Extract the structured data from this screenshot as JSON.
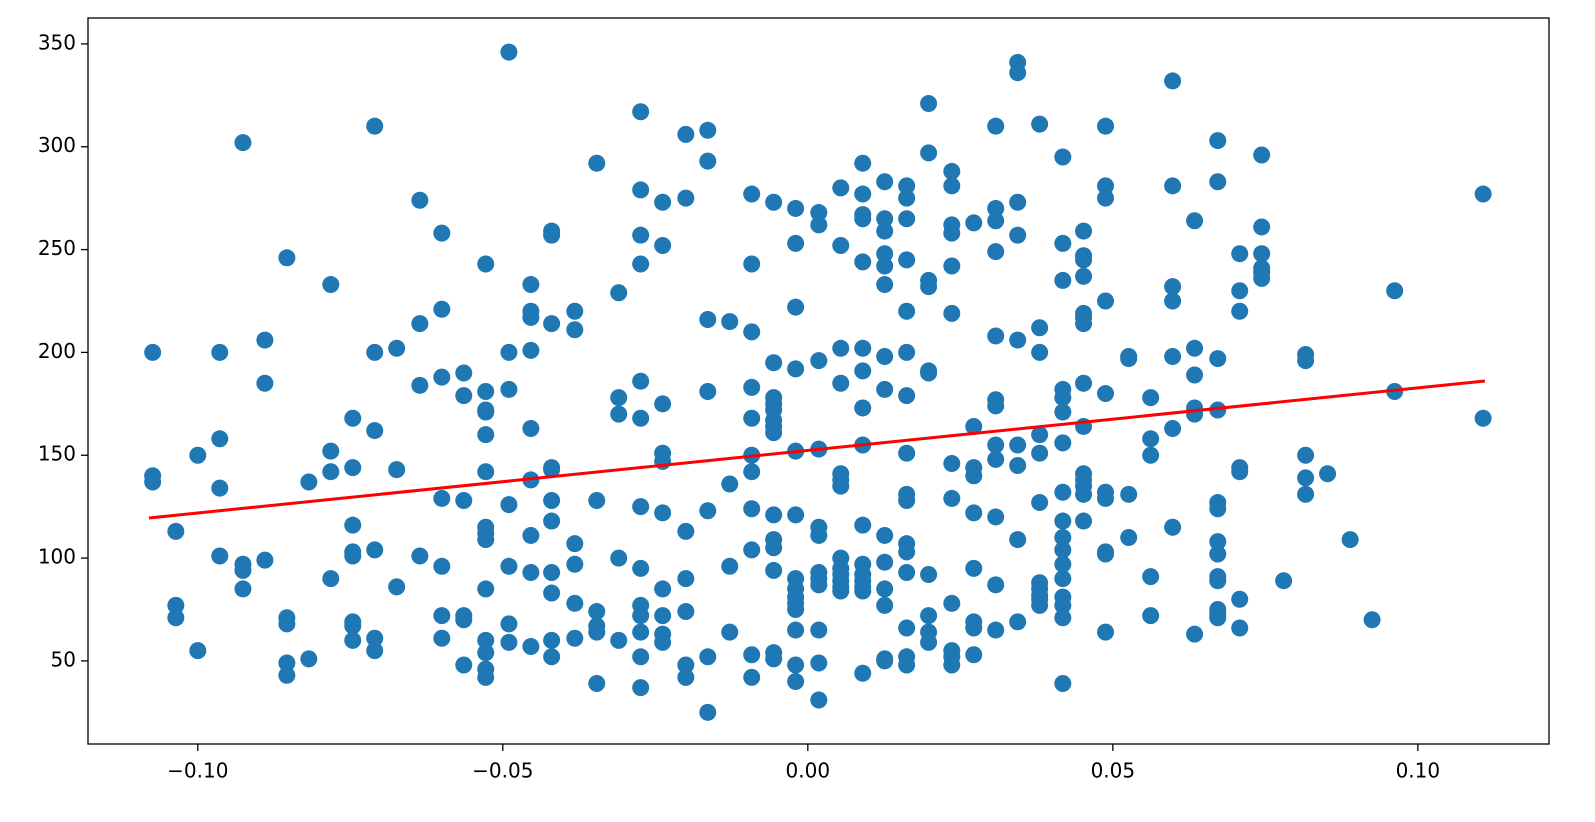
{
  "chart_data": {
    "type": "scatter",
    "color": "#1f77b4",
    "x": [
      -0.1074,
      -0.1074,
      -0.1074,
      -0.1036,
      -0.1036,
      -0.1036,
      -0.1,
      -0.1,
      -0.0964,
      -0.0964,
      -0.0964,
      -0.0964,
      -0.0926,
      -0.0926,
      -0.0926,
      -0.0926,
      -0.089,
      -0.089,
      -0.089,
      -0.0854,
      -0.0854,
      -0.0854,
      -0.0854,
      -0.0854,
      -0.0818,
      -0.0818,
      -0.0782,
      -0.0782,
      -0.0782,
      -0.0782,
      -0.0746,
      -0.0746,
      -0.0746,
      -0.0746,
      -0.0746,
      -0.0746,
      -0.0746,
      -0.0746,
      -0.071,
      -0.071,
      -0.071,
      -0.071,
      -0.071,
      -0.071,
      -0.0674,
      -0.0674,
      -0.0674,
      -0.0636,
      -0.0636,
      -0.0636,
      -0.0636,
      -0.06,
      -0.06,
      -0.06,
      -0.06,
      -0.06,
      -0.06,
      -0.06,
      -0.0564,
      -0.0564,
      -0.0564,
      -0.0564,
      -0.0564,
      -0.0564,
      -0.0528,
      -0.0528,
      -0.0528,
      -0.0528,
      -0.0528,
      -0.0528,
      -0.0528,
      -0.0528,
      -0.0528,
      -0.0528,
      -0.0528,
      -0.0528,
      -0.0528,
      -0.0528,
      -0.049,
      -0.049,
      -0.049,
      -0.049,
      -0.049,
      -0.049,
      -0.049,
      -0.0454,
      -0.0454,
      -0.0454,
      -0.0454,
      -0.0454,
      -0.0454,
      -0.0454,
      -0.0454,
      -0.0454,
      -0.042,
      -0.042,
      -0.042,
      -0.042,
      -0.042,
      -0.042,
      -0.042,
      -0.042,
      -0.042,
      -0.042,
      -0.042,
      -0.0382,
      -0.0382,
      -0.0382,
      -0.0382,
      -0.0382,
      -0.0382,
      -0.0346,
      -0.0346,
      -0.0346,
      -0.0346,
      -0.0346,
      -0.0346,
      -0.031,
      -0.031,
      -0.031,
      -0.031,
      -0.031,
      -0.0274,
      -0.0274,
      -0.0274,
      -0.0274,
      -0.0274,
      -0.0274,
      -0.0274,
      -0.0274,
      -0.0274,
      -0.0274,
      -0.0274,
      -0.0274,
      -0.0274,
      -0.0238,
      -0.0238,
      -0.0238,
      -0.0238,
      -0.0238,
      -0.0238,
      -0.0238,
      -0.0238,
      -0.0238,
      -0.0238,
      -0.02,
      -0.02,
      -0.02,
      -0.02,
      -0.02,
      -0.02,
      -0.02,
      -0.0164,
      -0.0164,
      -0.0164,
      -0.0164,
      -0.0164,
      -0.0164,
      -0.0164,
      -0.0128,
      -0.0128,
      -0.0128,
      -0.0128,
      -0.0092,
      -0.0092,
      -0.0092,
      -0.0092,
      -0.0092,
      -0.0092,
      -0.0092,
      -0.0092,
      -0.0092,
      -0.0092,
      -0.0092,
      -0.0056,
      -0.0056,
      -0.0056,
      -0.0056,
      -0.0056,
      -0.0056,
      -0.0056,
      -0.0056,
      -0.0056,
      -0.0056,
      -0.0056,
      -0.0056,
      -0.0056,
      -0.0056,
      -0.002,
      -0.002,
      -0.002,
      -0.002,
      -0.002,
      -0.002,
      -0.002,
      -0.002,
      -0.002,
      -0.002,
      -0.002,
      -0.002,
      -0.002,
      -0.002,
      0.0018,
      0.0018,
      0.0018,
      0.0018,
      0.0018,
      0.0018,
      0.0018,
      0.0018,
      0.0018,
      0.0018,
      0.0018,
      0.0018,
      0.0054,
      0.0054,
      0.0054,
      0.0054,
      0.0054,
      0.0054,
      0.0054,
      0.0054,
      0.0054,
      0.0054,
      0.0054,
      0.0054,
      0.0054,
      0.009,
      0.009,
      0.009,
      0.009,
      0.009,
      0.009,
      0.009,
      0.009,
      0.009,
      0.009,
      0.009,
      0.009,
      0.009,
      0.009,
      0.009,
      0.009,
      0.0126,
      0.0126,
      0.0126,
      0.0126,
      0.0126,
      0.0126,
      0.0126,
      0.0126,
      0.0126,
      0.0126,
      0.0126,
      0.0126,
      0.0126,
      0.0126,
      0.0162,
      0.0162,
      0.0162,
      0.0162,
      0.0162,
      0.0162,
      0.0162,
      0.0162,
      0.0162,
      0.0162,
      0.0162,
      0.0162,
      0.0162,
      0.0162,
      0.0162,
      0.0162,
      0.0198,
      0.0198,
      0.0198,
      0.0198,
      0.0198,
      0.0198,
      0.0198,
      0.0198,
      0.0198,
      0.0198,
      0.0236,
      0.0236,
      0.0236,
      0.0236,
      0.0236,
      0.0236,
      0.0236,
      0.0236,
      0.0236,
      0.0236,
      0.0236,
      0.0236,
      0.0272,
      0.0272,
      0.0272,
      0.0272,
      0.0272,
      0.0272,
      0.0272,
      0.0272,
      0.0272,
      0.0308,
      0.0308,
      0.0308,
      0.0308,
      0.0308,
      0.0308,
      0.0308,
      0.0308,
      0.0308,
      0.0308,
      0.0308,
      0.0308,
      0.0344,
      0.0344,
      0.0344,
      0.0344,
      0.0344,
      0.0344,
      0.0344,
      0.0344,
      0.0344,
      0.038,
      0.038,
      0.038,
      0.038,
      0.038,
      0.038,
      0.038,
      0.038,
      0.038,
      0.038,
      0.038,
      0.0418,
      0.0418,
      0.0418,
      0.0418,
      0.0418,
      0.0418,
      0.0418,
      0.0418,
      0.0418,
      0.0418,
      0.0418,
      0.0418,
      0.0418,
      0.0418,
      0.0418,
      0.0418,
      0.0418,
      0.0452,
      0.0452,
      0.0452,
      0.0452,
      0.0452,
      0.0452,
      0.0452,
      0.0452,
      0.0452,
      0.0452,
      0.0452,
      0.0452,
      0.0452,
      0.0452,
      0.0488,
      0.0488,
      0.0488,
      0.0488,
      0.0488,
      0.0488,
      0.0488,
      0.0488,
      0.0488,
      0.0488,
      0.0526,
      0.0526,
      0.0526,
      0.0526,
      0.0562,
      0.0562,
      0.0562,
      0.0562,
      0.0562,
      0.0598,
      0.0598,
      0.0598,
      0.0598,
      0.0598,
      0.0598,
      0.0598,
      0.0634,
      0.0634,
      0.0634,
      0.0634,
      0.0634,
      0.0634,
      0.0672,
      0.0672,
      0.0672,
      0.0672,
      0.0672,
      0.0672,
      0.0672,
      0.0672,
      0.0672,
      0.0672,
      0.0672,
      0.0672,
      0.0672,
      0.0708,
      0.0708,
      0.0708,
      0.0708,
      0.0708,
      0.0708,
      0.0708,
      0.0744,
      0.0744,
      0.0744,
      0.0744,
      0.0744,
      0.0744,
      0.078,
      0.0816,
      0.0816,
      0.0816,
      0.0816,
      0.0816,
      0.0852,
      0.0889,
      0.0925,
      0.0962,
      0.0962,
      0.1107,
      0.1107
    ],
    "values": [
      200,
      140,
      137,
      113,
      77,
      71,
      150,
      55,
      200,
      158,
      134,
      101,
      302,
      97,
      94,
      85,
      206,
      185,
      99,
      246,
      71,
      68,
      49,
      43,
      137,
      51,
      233,
      152,
      142,
      90,
      168,
      144,
      116,
      103,
      101,
      69,
      67,
      60,
      310,
      200,
      162,
      104,
      61,
      55,
      202,
      143,
      86,
      274,
      214,
      184,
      101,
      258,
      221,
      188,
      129,
      96,
      72,
      61,
      190,
      179,
      128,
      72,
      70,
      48,
      243,
      181,
      172,
      171,
      160,
      142,
      115,
      112,
      109,
      85,
      60,
      54,
      46,
      42,
      346,
      200,
      182,
      126,
      96,
      68,
      59,
      233,
      220,
      217,
      201,
      163,
      138,
      111,
      93,
      57,
      259,
      257,
      214,
      144,
      143,
      128,
      118,
      93,
      83,
      60,
      52,
      220,
      211,
      107,
      97,
      78,
      61,
      292,
      128,
      74,
      67,
      64,
      39,
      229,
      178,
      170,
      100,
      60,
      317,
      279,
      257,
      243,
      186,
      168,
      125,
      95,
      77,
      72,
      64,
      52,
      37,
      273,
      252,
      175,
      151,
      147,
      122,
      85,
      72,
      63,
      59,
      306,
      275,
      113,
      90,
      74,
      48,
      42,
      308,
      293,
      216,
      181,
      123,
      52,
      25,
      215,
      136,
      96,
      64,
      277,
      243,
      210,
      183,
      168,
      150,
      142,
      124,
      104,
      53,
      42,
      273,
      195,
      178,
      175,
      172,
      167,
      164,
      161,
      121,
      109,
      105,
      94,
      54,
      51,
      270,
      253,
      222,
      192,
      152,
      121,
      90,
      85,
      81,
      78,
      75,
      65,
      48,
      40,
      268,
      262,
      196,
      153,
      115,
      111,
      93,
      90,
      87,
      65,
      49,
      31,
      280,
      252,
      202,
      185,
      141,
      138,
      135,
      100,
      95,
      92,
      89,
      86,
      84,
      292,
      277,
      267,
      265,
      244,
      202,
      191,
      173,
      155,
      116,
      97,
      92,
      89,
      86,
      84,
      44,
      283,
      265,
      259,
      248,
      242,
      233,
      198,
      182,
      111,
      98,
      85,
      77,
      51,
      50,
      281,
      275,
      265,
      245,
      220,
      200,
      179,
      151,
      131,
      128,
      107,
      103,
      93,
      66,
      52,
      48,
      321,
      297,
      235,
      232,
      191,
      190,
      92,
      72,
      64,
      59,
      288,
      281,
      262,
      258,
      242,
      219,
      146,
      129,
      78,
      55,
      52,
      48,
      263,
      164,
      144,
      140,
      122,
      95,
      69,
      66,
      53,
      310,
      270,
      264,
      249,
      208,
      177,
      174,
      155,
      148,
      120,
      87,
      65,
      341,
      336,
      273,
      257,
      206,
      155,
      145,
      109,
      69,
      311,
      212,
      200,
      160,
      151,
      127,
      88,
      85,
      82,
      80,
      77,
      295,
      253,
      235,
      182,
      178,
      171,
      156,
      132,
      118,
      110,
      104,
      97,
      90,
      81,
      77,
      71,
      39,
      259,
      247,
      245,
      237,
      219,
      217,
      214,
      185,
      164,
      141,
      138,
      135,
      131,
      118,
      310,
      281,
      275,
      225,
      180,
      132,
      129,
      103,
      102,
      64,
      198,
      197,
      131,
      110,
      178,
      158,
      150,
      91,
      72,
      332,
      281,
      232,
      225,
      198,
      163,
      115,
      264,
      202,
      189,
      173,
      170,
      63,
      303,
      283,
      197,
      172,
      127,
      124,
      108,
      102,
      91,
      89,
      75,
      73,
      71,
      248,
      230,
      220,
      144,
      142,
      80,
      66,
      296,
      261,
      248,
      241,
      239,
      236,
      89,
      199,
      196,
      150,
      139,
      131,
      141,
      109,
      70,
      230,
      181,
      277,
      168
    ],
    "line": {
      "x": [
        -0.108,
        0.111
      ],
      "values": [
        119.5,
        186.1
      ],
      "color": "#ff0000"
    },
    "xlim": [
      -0.118,
      0.1215
    ],
    "ylim": [
      9.6,
      362.6
    ],
    "xticks": [
      {
        "value": -0.1,
        "label": "−0.10"
      },
      {
        "value": -0.05,
        "label": "−0.05"
      },
      {
        "value": 0,
        "label": "0.00"
      },
      0.05,
      {
        "value": 0.1,
        "label": "0.10"
      }
    ],
    "yticks": [
      50,
      100,
      150,
      200,
      250,
      300,
      350
    ]
  }
}
